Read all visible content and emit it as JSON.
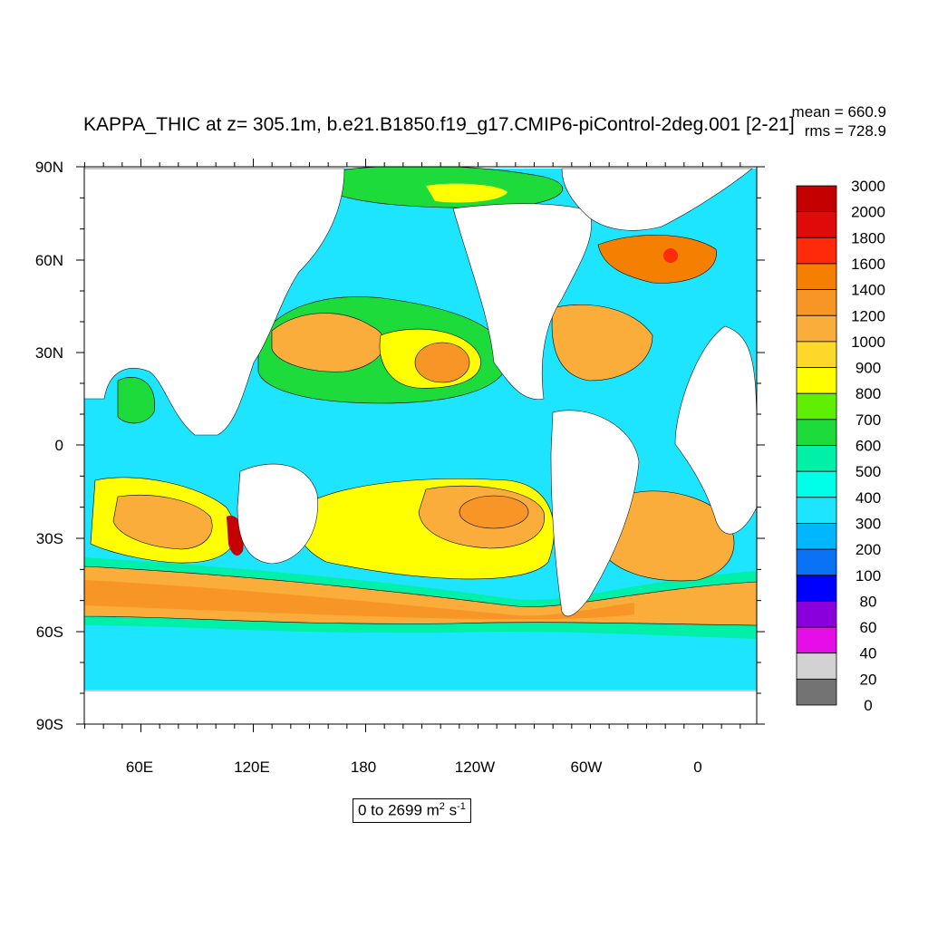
{
  "title": "KAPPA_THIC at z= 305.1m, b.e21.B1850.f19_g17.CMIP6-piControl-2deg.001 [2-21]",
  "stats": {
    "mean": "mean = 660.9",
    "rms": "rms = 728.9"
  },
  "axes": {
    "lat_ticks": [
      "90N",
      "60N",
      "30N",
      "0",
      "30S",
      "60S",
      "90S"
    ],
    "lon_ticks": [
      "60E",
      "120E",
      "180",
      "120W",
      "60W",
      "0"
    ]
  },
  "colorbar": {
    "levels": [
      "3000",
      "2000",
      "1800",
      "1600",
      "1400",
      "1200",
      "1000",
      "900",
      "800",
      "700",
      "600",
      "500",
      "400",
      "300",
      "200",
      "100",
      "80",
      "60",
      "40",
      "20",
      "0"
    ],
    "colors": [
      "#c40000",
      "#e00a0a",
      "#ff2a0a",
      "#f47f00",
      "#f79627",
      "#fbad3c",
      "#fdd82b",
      "#ffff00",
      "#5fef00",
      "#1cdb3a",
      "#00f0a8",
      "#00ffe9",
      "#1ee5ff",
      "#00b6ff",
      "#0a73f5",
      "#0000ff",
      "#8a00dd",
      "#e60ee6",
      "#d2d2d2",
      "#737373"
    ]
  },
  "range_label": {
    "text": "0 to 2699 m",
    "exp1": "2",
    "unit2": " s",
    "exp2": "-1"
  },
  "colors": {
    "land": "#ffffff",
    "ocean_base": "#1ee5ff"
  }
}
